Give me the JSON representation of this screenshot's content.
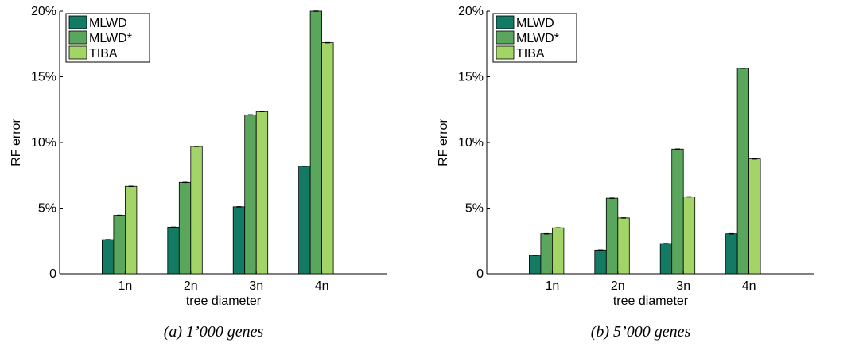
{
  "colors": {
    "MLWD": "#137a63",
    "MLWD*": "#5aa65c",
    "TIBA": "#a3d467"
  },
  "chart_data": [
    {
      "type": "bar",
      "caption": "(a) 1’000 genes",
      "categories": [
        "1n",
        "2n",
        "3n",
        "4n"
      ],
      "series": [
        {
          "name": "MLWD",
          "values": [
            2.6,
            3.55,
            5.1,
            8.2
          ]
        },
        {
          "name": "MLWD*",
          "values": [
            4.45,
            6.95,
            12.1,
            20.0
          ]
        },
        {
          "name": "TIBA",
          "values": [
            6.65,
            9.7,
            12.35,
            17.6
          ]
        }
      ],
      "xlabel": "tree diameter",
      "ylabel": "RF error",
      "ylim": [
        0,
        20
      ],
      "yticks": [
        0,
        5,
        10,
        15,
        20
      ],
      "ytick_labels": [
        "0",
        "5%",
        "10%",
        "15%",
        "20%"
      ],
      "legend": "top-left",
      "grid": false
    },
    {
      "type": "bar",
      "caption": "(b) 5’000 genes",
      "categories": [
        "1n",
        "2n",
        "3n",
        "4n"
      ],
      "series": [
        {
          "name": "MLWD",
          "values": [
            1.4,
            1.8,
            2.3,
            3.05
          ]
        },
        {
          "name": "MLWD*",
          "values": [
            3.05,
            5.75,
            9.5,
            15.65
          ]
        },
        {
          "name": "TIBA",
          "values": [
            3.5,
            4.25,
            5.85,
            8.75
          ]
        }
      ],
      "xlabel": "tree diameter",
      "ylabel": "RF error",
      "ylim": [
        0,
        20
      ],
      "yticks": [
        0,
        5,
        10,
        15,
        20
      ],
      "ytick_labels": [
        "0",
        "5%",
        "10%",
        "15%",
        "20%"
      ],
      "legend": "top-left",
      "grid": false
    }
  ]
}
